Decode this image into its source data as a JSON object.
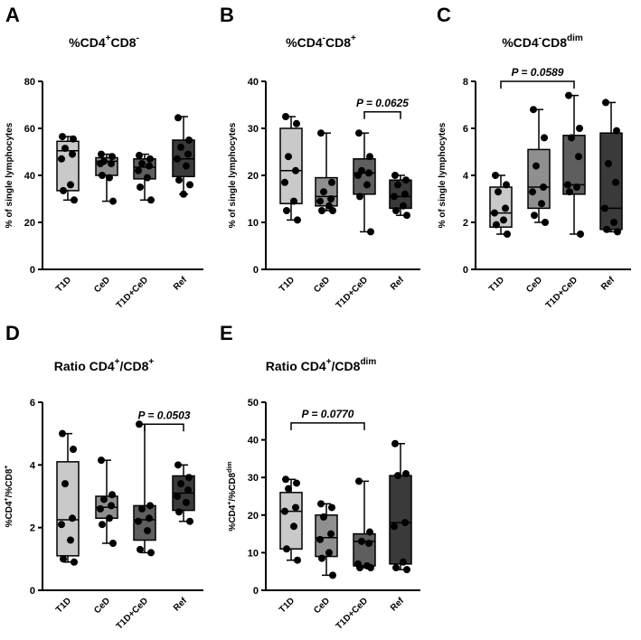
{
  "style": {
    "box_fills": [
      "#c9c9c9",
      "#8f8f8f",
      "#5e5e5e",
      "#3a3a3a"
    ],
    "ink": "#000000"
  },
  "chart_data": [
    {
      "id": "A",
      "panel": "A",
      "type": "box",
      "title": "%CD4",
      "title_sup": "+",
      "title_rest": "CD8",
      "title_sup2": "-",
      "title_rest2": "",
      "ylabel": "% of single lymphocytes",
      "ylim": [
        0,
        80
      ],
      "yticks": [
        0,
        20,
        40,
        60,
        80
      ],
      "categories": [
        "T1D",
        "CeD",
        "T1D+CeD",
        "Ref"
      ],
      "series": [
        {
          "name": "T1D",
          "min": 29.5,
          "q1": 33.5,
          "median": 50.5,
          "q3": 54.5,
          "max": 56.5,
          "points": [
            56.5,
            55.5,
            51.5,
            49,
            47,
            36,
            33.5,
            29.5
          ]
        },
        {
          "name": "CeD",
          "min": 29,
          "q1": 40,
          "median": 46,
          "q3": 47.5,
          "max": 49,
          "points": [
            49,
            48,
            46,
            45,
            45,
            39,
            40,
            29
          ]
        },
        {
          "name": "T1D+CeD",
          "min": 29.5,
          "q1": 38.5,
          "median": 43.5,
          "q3": 47,
          "max": 49,
          "points": [
            48.5,
            47,
            45,
            44,
            42,
            39,
            35,
            29.5
          ]
        },
        {
          "name": "Ref",
          "min": 32,
          "q1": 39.5,
          "median": 47,
          "q3": 55,
          "max": 65,
          "points": [
            64.5,
            55,
            52,
            49,
            47,
            44,
            38,
            36,
            32
          ]
        }
      ],
      "annotation": null
    },
    {
      "id": "B",
      "panel": "B",
      "type": "box",
      "title": "%CD4",
      "title_sup": "-",
      "title_rest": "CD8",
      "title_sup2": "+",
      "title_rest2": "",
      "ylabel": "% of single lymphocytes",
      "ylim": [
        0,
        40
      ],
      "yticks": [
        0,
        10,
        20,
        30,
        40
      ],
      "categories": [
        "T1D",
        "CeD",
        "T1D+CeD",
        "Ref"
      ],
      "series": [
        {
          "name": "T1D",
          "min": 10.5,
          "q1": 14,
          "median": 21,
          "q3": 30,
          "max": 32.5,
          "points": [
            32.5,
            31,
            24,
            21,
            18.5,
            14.5,
            12.5,
            10.5
          ]
        },
        {
          "name": "CeD",
          "min": 12.5,
          "q1": 13.5,
          "median": 15.5,
          "q3": 19.5,
          "max": 29,
          "points": [
            29,
            18.5,
            16.5,
            15,
            14.5,
            13.5,
            12.5,
            12.5
          ]
        },
        {
          "name": "T1D+CeD",
          "min": 8,
          "q1": 16,
          "median": 20.5,
          "q3": 23.5,
          "max": 29,
          "points": [
            29,
            24,
            21,
            20.5,
            20,
            18,
            15.5,
            8
          ]
        },
        {
          "name": "Ref",
          "min": 11.5,
          "q1": 13,
          "median": 15.5,
          "q3": 19,
          "max": 20,
          "points": [
            20,
            19,
            18,
            16,
            15.5,
            13.5,
            12.5,
            11.5
          ]
        }
      ],
      "annotation": {
        "text": "P = 0.0625",
        "from": 2,
        "to": 3,
        "y": 33.5
      }
    },
    {
      "id": "C",
      "panel": "C",
      "type": "box",
      "title": "%CD4",
      "title_sup": "-",
      "title_rest": "CD8",
      "title_sup2": "dim",
      "title_rest2": "",
      "ylabel": "% of single lymphocytes",
      "ylim": [
        0,
        8
      ],
      "yticks": [
        0,
        2,
        4,
        6,
        8
      ],
      "categories": [
        "T1D",
        "CeD",
        "T1D+CeD",
        "Ref"
      ],
      "series": [
        {
          "name": "T1D",
          "min": 1.5,
          "q1": 1.8,
          "median": 2.4,
          "q3": 3.5,
          "max": 4,
          "points": [
            4.0,
            3.6,
            3.3,
            2.6,
            2.4,
            2.1,
            1.9,
            1.5
          ]
        },
        {
          "name": "CeD",
          "min": 2,
          "q1": 2.6,
          "median": 3.5,
          "q3": 5.1,
          "max": 6.8,
          "points": [
            6.8,
            5.6,
            4.4,
            3.5,
            3.3,
            2.8,
            2.3,
            2.0
          ]
        },
        {
          "name": "T1D+CeD",
          "min": 1.5,
          "q1": 3.2,
          "median": 3.6,
          "q3": 5.7,
          "max": 7.4,
          "points": [
            7.4,
            6.0,
            5.6,
            4.8,
            3.6,
            3.5,
            3.3,
            1.5
          ]
        },
        {
          "name": "Ref",
          "min": 1.6,
          "q1": 1.7,
          "median": 2.6,
          "q3": 5.8,
          "max": 7.1,
          "points": [
            7.1,
            5.9,
            4.5,
            3.7,
            2.6,
            2.0,
            1.7,
            1.6
          ]
        }
      ],
      "annotation": {
        "text": "P = 0.0589",
        "from": 0,
        "to": 2,
        "y": 8.0
      }
    },
    {
      "id": "D",
      "panel": "D",
      "type": "box",
      "title": "Ratio CD4",
      "title_sup": "+",
      "title_rest": "/CD8",
      "title_sup2": "+",
      "title_rest2": "",
      "ylabel": "%CD4",
      "ylabel_parts": [
        "%CD4",
        "+",
        "/%CD8",
        "+"
      ],
      "ylim": [
        0,
        6
      ],
      "yticks": [
        0,
        2,
        4,
        6
      ],
      "categories": [
        "T1D",
        "CeD",
        "T1D+CeD",
        "Ref"
      ],
      "series": [
        {
          "name": "T1D",
          "min": 0.9,
          "q1": 1.1,
          "median": 2.25,
          "q3": 4.1,
          "max": 5,
          "points": [
            5.0,
            4.5,
            3.4,
            2.3,
            2.1,
            1.6,
            1.0,
            0.9
          ]
        },
        {
          "name": "CeD",
          "min": 1.5,
          "q1": 2.3,
          "median": 2.65,
          "q3": 3.0,
          "max": 4.15,
          "points": [
            4.15,
            3.05,
            2.9,
            2.7,
            2.6,
            2.3,
            2.1,
            1.5
          ]
        },
        {
          "name": "T1D+CeD",
          "min": 1.2,
          "q1": 1.6,
          "median": 2.25,
          "q3": 2.7,
          "max": 5.3,
          "points": [
            5.3,
            2.7,
            2.6,
            2.3,
            2.2,
            1.9,
            1.3,
            1.2
          ]
        },
        {
          "name": "Ref",
          "min": 2.2,
          "q1": 2.55,
          "median": 3.1,
          "q3": 3.65,
          "max": 4.0,
          "points": [
            4.0,
            3.6,
            3.4,
            3.2,
            3.0,
            2.8,
            2.5,
            2.2
          ]
        }
      ],
      "annotation": {
        "text": "P = 0.0503",
        "from": 2,
        "to": 3,
        "y": 5.3
      }
    },
    {
      "id": "E",
      "panel": "E",
      "type": "box",
      "title": "Ratio CD4",
      "title_sup": "+",
      "title_rest": "/CD8",
      "title_sup2": "dim",
      "title_rest2": "",
      "ylabel": "%CD4",
      "ylabel_parts": [
        "%CD4",
        "+",
        "/%CD8",
        "dim"
      ],
      "ylim": [
        0,
        50
      ],
      "yticks": [
        0,
        10,
        20,
        30,
        40,
        50
      ],
      "categories": [
        "T1D",
        "CeD",
        "T1D+CeD",
        "Ref"
      ],
      "series": [
        {
          "name": "T1D",
          "min": 8,
          "q1": 11,
          "median": 21,
          "q3": 26,
          "max": 29.5,
          "points": [
            29.5,
            28.5,
            27,
            22,
            21,
            17,
            11,
            8
          ]
        },
        {
          "name": "CeD",
          "min": 4,
          "q1": 9,
          "median": 14,
          "q3": 20,
          "max": 23,
          "points": [
            23,
            22,
            19.5,
            15,
            13.5,
            10,
            8.5,
            4
          ]
        },
        {
          "name": "T1D+CeD",
          "min": 6,
          "q1": 6.5,
          "median": 13,
          "q3": 15,
          "max": 29,
          "points": [
            29,
            15.5,
            13,
            12.5,
            7,
            6.5,
            6,
            6
          ]
        },
        {
          "name": "Ref",
          "min": 5.5,
          "q1": 7,
          "median": 18,
          "q3": 30.5,
          "max": 39,
          "points": [
            39,
            31,
            30.5,
            18,
            17,
            7.5,
            6,
            5.5
          ]
        }
      ],
      "annotation": {
        "text": "P = 0.0770",
        "from": 0,
        "to": 2,
        "y": 44.5
      }
    }
  ]
}
